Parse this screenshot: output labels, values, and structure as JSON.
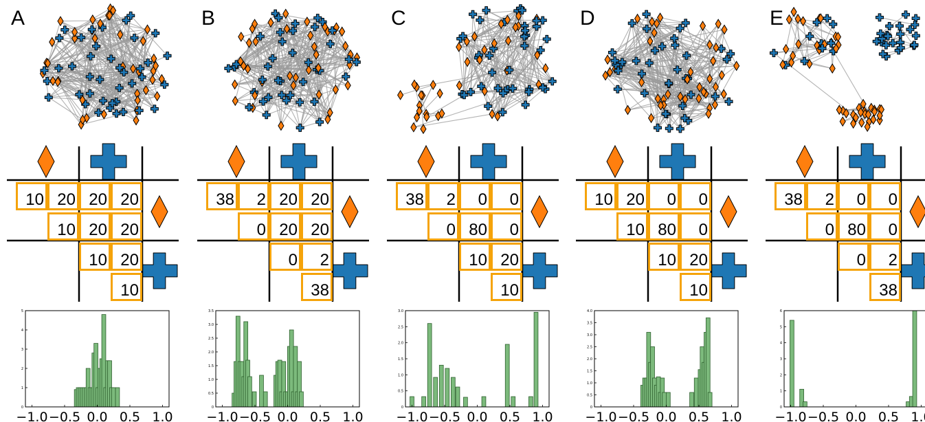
{
  "figure": {
    "colors": {
      "diamond": "#ff7f0e",
      "cross": "#1f77b4",
      "cell_border": "#f5a30a",
      "bar": "#7cba7c",
      "edge": "#9a9a9a"
    },
    "icons": [
      "orange-diamond-icon",
      "blue-cross-icon"
    ],
    "panels": [
      {
        "letter": "A",
        "network": {
          "nodes_per_type": 40,
          "clusters": 1
        },
        "matrix": {
          "dd": [
            "10",
            "20",
            "10"
          ],
          "dc": [
            "20",
            "20",
            "20",
            "20"
          ],
          "cc": [
            "10",
            "20",
            "10"
          ]
        },
        "hist": {
          "ytick_labels": [
            "0",
            "1",
            "2",
            "3",
            "4",
            "5"
          ],
          "ymax": 5,
          "bars": [
            [
              -0.32,
              0.9
            ],
            [
              -0.29,
              1.0
            ],
            [
              -0.26,
              1.0
            ],
            [
              -0.23,
              1.0
            ],
            [
              -0.2,
              1.0
            ],
            [
              -0.17,
              1.0
            ],
            [
              -0.14,
              2.0
            ],
            [
              -0.11,
              1.0
            ],
            [
              -0.08,
              1.0
            ],
            [
              -0.05,
              2.8
            ],
            [
              -0.02,
              3.3
            ],
            [
              0.01,
              1.0
            ],
            [
              0.04,
              2.0
            ],
            [
              0.07,
              2.5
            ],
            [
              0.1,
              4.8
            ],
            [
              0.13,
              1.0
            ],
            [
              0.16,
              2.4
            ],
            [
              0.19,
              2.4
            ],
            [
              0.22,
              1.0
            ],
            [
              0.25,
              1.0
            ],
            [
              0.31,
              1.0
            ]
          ]
        }
      },
      {
        "letter": "B",
        "network": {
          "nodes_per_type": 40,
          "clusters": 1
        },
        "matrix": {
          "dd": [
            "38",
            "2",
            "0"
          ],
          "dc": [
            "20",
            "20",
            "20",
            "20"
          ],
          "cc": [
            "0",
            "2",
            "38"
          ]
        },
        "hist": {
          "ytick_labels": [
            "0",
            "0.5",
            "1.0",
            "1.5",
            "2.0",
            "2.5",
            "3.0",
            "3.5"
          ],
          "ymax": 3.5,
          "bars": [
            [
              -0.82,
              0.5
            ],
            [
              -0.79,
              1.65
            ],
            [
              -0.76,
              3.3
            ],
            [
              -0.73,
              1.65
            ],
            [
              -0.7,
              1.65
            ],
            [
              -0.67,
              1.1
            ],
            [
              -0.64,
              3.1
            ],
            [
              -0.61,
              1.7
            ],
            [
              -0.58,
              1.1
            ],
            [
              -0.51,
              0.55
            ],
            [
              -0.4,
              1.15
            ],
            [
              -0.34,
              0.55
            ],
            [
              -0.18,
              1.15
            ],
            [
              -0.15,
              1.65
            ],
            [
              -0.12,
              1.7
            ],
            [
              -0.09,
              0.55
            ],
            [
              -0.06,
              1.65
            ],
            [
              -0.03,
              0.55
            ],
            [
              0.0,
              0.55
            ],
            [
              0.03,
              2.2
            ],
            [
              0.06,
              2.8
            ],
            [
              0.09,
              0.55
            ],
            [
              0.12,
              2.2
            ],
            [
              0.15,
              0.55
            ],
            [
              0.18,
              1.65
            ],
            [
              0.21,
              0.55
            ]
          ]
        }
      },
      {
        "letter": "C",
        "network": {
          "nodes_per_type": 40,
          "clusters": 2
        },
        "matrix": {
          "dd": [
            "38",
            "2",
            "0"
          ],
          "dc": [
            "0",
            "0",
            "80",
            "0"
          ],
          "cc": [
            "10",
            "20",
            "10"
          ]
        },
        "hist": {
          "ytick_labels": [
            "0",
            "0.5",
            "1.0",
            "1.5",
            "2.0",
            "2.5",
            "3.0"
          ],
          "ymax": 3.0,
          "bars": [
            [
              -1.0,
              0.32
            ],
            [
              -0.82,
              0.32
            ],
            [
              -0.73,
              2.6
            ],
            [
              -0.64,
              0.92
            ],
            [
              -0.55,
              1.3
            ],
            [
              -0.46,
              1.2
            ],
            [
              -0.37,
              0.92
            ],
            [
              -0.3,
              0.62
            ],
            [
              -0.18,
              0.3
            ],
            [
              0.1,
              0.32
            ],
            [
              0.46,
              1.95
            ],
            [
              0.55,
              0.32
            ],
            [
              0.82,
              0.32
            ],
            [
              0.9,
              2.95
            ]
          ]
        }
      },
      {
        "letter": "D",
        "network": {
          "nodes_per_type": 40,
          "clusters": 1
        },
        "matrix": {
          "dd": [
            "10",
            "20",
            "10"
          ],
          "dc": [
            "0",
            "0",
            "80",
            "0"
          ],
          "cc": [
            "10",
            "20",
            "10"
          ]
        },
        "hist": {
          "ytick_labels": [
            "0",
            "0.5",
            "1.0",
            "1.5",
            "2.0",
            "2.5",
            "3.0",
            "3.5",
            "4.0"
          ],
          "ymax": 4.0,
          "bars": [
            [
              -0.36,
              0.9
            ],
            [
              -0.33,
              1.2
            ],
            [
              -0.3,
              1.2
            ],
            [
              -0.27,
              3.1
            ],
            [
              -0.24,
              1.85
            ],
            [
              -0.21,
              2.5
            ],
            [
              -0.18,
              1.2
            ],
            [
              -0.15,
              0.9
            ],
            [
              -0.12,
              1.25
            ],
            [
              -0.09,
              0.6
            ],
            [
              -0.06,
              1.2
            ],
            [
              -0.03,
              0.6
            ],
            [
              0.03,
              0.6
            ],
            [
              0.39,
              0.6
            ],
            [
              0.46,
              1.2
            ],
            [
              0.52,
              1.55
            ],
            [
              0.55,
              2.5
            ],
            [
              0.58,
              1.85
            ],
            [
              0.61,
              3.1
            ],
            [
              0.64,
              3.7
            ],
            [
              0.67,
              0.6
            ]
          ]
        }
      },
      {
        "letter": "E",
        "network": {
          "nodes_per_type": 40,
          "clusters": 3
        },
        "matrix": {
          "dd": [
            "38",
            "2",
            "0"
          ],
          "dc": [
            "0",
            "0",
            "80",
            "0"
          ],
          "cc": [
            "0",
            "2",
            "38"
          ]
        },
        "hist": {
          "ytick_labels": [
            "0",
            "1",
            "2",
            "3",
            "4",
            "5",
            "6"
          ],
          "ymax": 6,
          "bars": [
            [
              -0.98,
              5.4
            ],
            [
              -0.83,
              1.1
            ],
            [
              -0.78,
              0.32
            ],
            [
              0.8,
              0.32
            ],
            [
              0.85,
              0.65
            ],
            [
              0.9,
              6.0
            ]
          ]
        }
      }
    ],
    "hist_x": {
      "range": [
        -1.1,
        1.1
      ],
      "tick_values": [
        -1.0,
        -0.5,
        0.0,
        0.5,
        1.0
      ],
      "tick_labels": [
        "−1.0",
        "−0.5",
        "0.0",
        "0.5",
        "1.0"
      ]
    }
  }
}
